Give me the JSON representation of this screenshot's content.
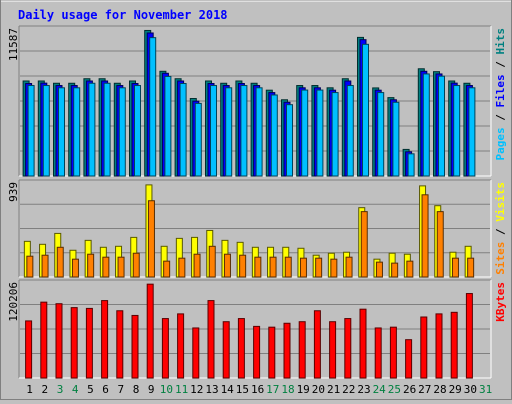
{
  "chart_data": [
    {
      "type": "bar",
      "title": "Daily usage for November 2018",
      "panel": "top",
      "ylabel_parts": [
        {
          "text": "Pages",
          "color": "#00c0ff"
        },
        {
          "text": " / ",
          "color": "#000000"
        },
        {
          "text": "Files",
          "color": "#0000ff"
        },
        {
          "text": " / ",
          "color": "#000000"
        },
        {
          "text": "Hits",
          "color": "#008080"
        }
      ],
      "ymax_label": "11587",
      "ylim": [
        0,
        11587
      ],
      "categories": [
        "1",
        "2",
        "3",
        "4",
        "5",
        "6",
        "7",
        "8",
        "9",
        "10",
        "11",
        "12",
        "13",
        "14",
        "15",
        "16",
        "17",
        "18",
        "19",
        "20",
        "21",
        "22",
        "23",
        "24",
        "25",
        "26",
        "27",
        "28",
        "29",
        "30",
        "31"
      ],
      "weekend_days": [
        "3",
        "4",
        "10",
        "11",
        "17",
        "18",
        "24",
        "25",
        "31"
      ],
      "series": [
        {
          "name": "Hits",
          "color": "#008080",
          "values": [
            7540,
            7540,
            7360,
            7360,
            7720,
            7720,
            7360,
            7540,
            11550,
            8310,
            7720,
            6150,
            7540,
            7360,
            7540,
            7360,
            6810,
            6050,
            7180,
            7180,
            7000,
            7720,
            11000,
            6990,
            6220,
            2110,
            8510,
            8280,
            7540,
            7360,
            0
          ]
        },
        {
          "name": "Files",
          "color": "#0000ff",
          "values": [
            7340,
            7370,
            7180,
            7180,
            7540,
            7540,
            7180,
            7340,
            11350,
            8150,
            7540,
            5940,
            7340,
            7180,
            7340,
            7180,
            6620,
            5850,
            7000,
            7000,
            6810,
            7540,
            10820,
            6810,
            6050,
            1920,
            8310,
            8100,
            7370,
            7180,
            0
          ]
        },
        {
          "name": "Pages",
          "color": "#00c0ff",
          "values": [
            7180,
            7180,
            7000,
            7000,
            7360,
            7360,
            7000,
            7180,
            10980,
            7900,
            7340,
            5760,
            7180,
            7000,
            7180,
            7000,
            6430,
            5660,
            6820,
            6820,
            6620,
            7180,
            10450,
            6620,
            5850,
            1760,
            8100,
            7920,
            7180,
            7000,
            0
          ]
        }
      ]
    },
    {
      "type": "bar",
      "panel": "middle",
      "ylabel_parts": [
        {
          "text": "Sites",
          "color": "#ff8000"
        },
        {
          "text": " / ",
          "color": "#000000"
        },
        {
          "text": "Visits",
          "color": "#ffff00"
        }
      ],
      "ymax_label": "939",
      "ylim": [
        0,
        939
      ],
      "series": [
        {
          "name": "Visits",
          "color": "#ffff00",
          "values": [
            360,
            330,
            440,
            270,
            370,
            300,
            310,
            400,
            930,
            310,
            390,
            400,
            470,
            370,
            350,
            300,
            300,
            300,
            290,
            220,
            240,
            250,
            700,
            180,
            240,
            230,
            920,
            720,
            250,
            310,
            0
          ]
        },
        {
          "name": "Sites",
          "color": "#ff8000",
          "values": [
            210,
            220,
            300,
            180,
            230,
            200,
            200,
            240,
            770,
            160,
            190,
            230,
            310,
            230,
            220,
            200,
            200,
            200,
            190,
            190,
            180,
            200,
            660,
            150,
            140,
            160,
            830,
            660,
            190,
            190,
            0
          ]
        }
      ]
    },
    {
      "type": "bar",
      "panel": "bottom",
      "ylabel_parts": [
        {
          "text": "KBytes",
          "color": "#ff0000"
        }
      ],
      "ymax_label": "120206",
      "ylim": [
        0,
        120206
      ],
      "series": [
        {
          "name": "KBytes",
          "color": "#ff0000",
          "values": [
            73000,
            97000,
            95000,
            90000,
            89000,
            99000,
            86000,
            80000,
            120000,
            76000,
            82000,
            64000,
            99000,
            72000,
            76000,
            66000,
            65000,
            70000,
            72000,
            86000,
            72000,
            76000,
            88000,
            64000,
            65000,
            49000,
            78000,
            82000,
            84000,
            108000,
            0
          ]
        }
      ]
    }
  ]
}
